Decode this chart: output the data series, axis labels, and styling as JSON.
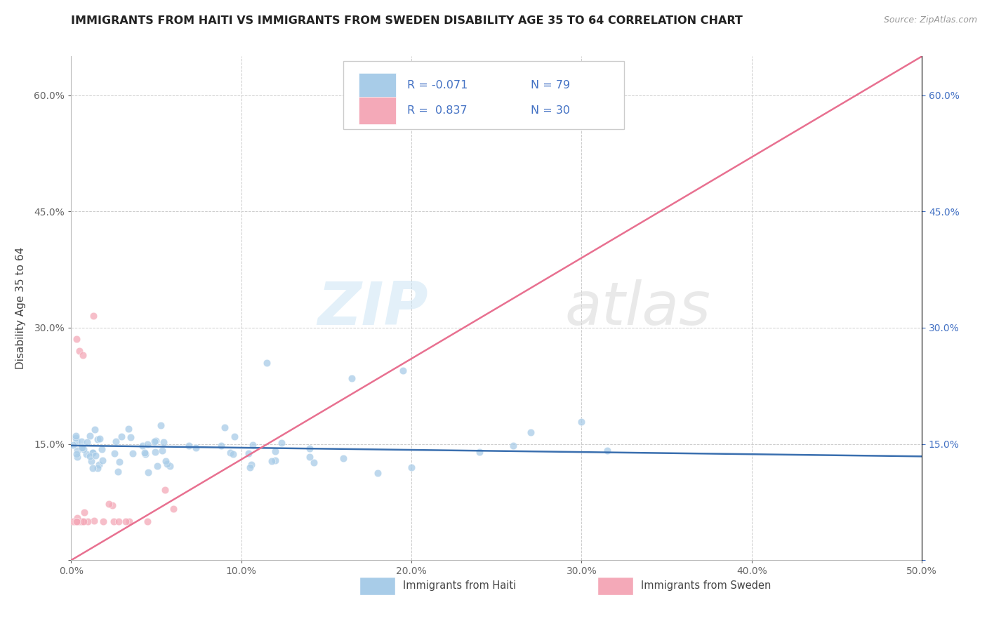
{
  "title": "IMMIGRANTS FROM HAITI VS IMMIGRANTS FROM SWEDEN DISABILITY AGE 35 TO 64 CORRELATION CHART",
  "source": "Source: ZipAtlas.com",
  "ylabel": "Disability Age 35 to 64",
  "xlim": [
    0.0,
    0.5
  ],
  "ylim": [
    0.0,
    0.65
  ],
  "haiti_color": "#a8cce8",
  "sweden_color": "#f4a9b8",
  "haiti_line_color": "#3a6faf",
  "sweden_line_color": "#e87090",
  "haiti_R": -0.071,
  "haiti_N": 79,
  "sweden_R": 0.837,
  "sweden_N": 30,
  "watermark_zip": "ZIP",
  "watermark_atlas": "atlas",
  "legend_label_haiti": "Immigrants from Haiti",
  "legend_label_sweden": "Immigrants from Sweden",
  "title_fontsize": 11.5,
  "source_fontsize": 9,
  "axis_tick_fontsize": 10,
  "ylabel_fontsize": 11,
  "haiti_line_x": [
    0.0,
    0.5
  ],
  "haiti_line_y": [
    0.148,
    0.134
  ],
  "sweden_line_x": [
    0.0,
    0.5
  ],
  "sweden_line_y": [
    0.0,
    0.65
  ]
}
